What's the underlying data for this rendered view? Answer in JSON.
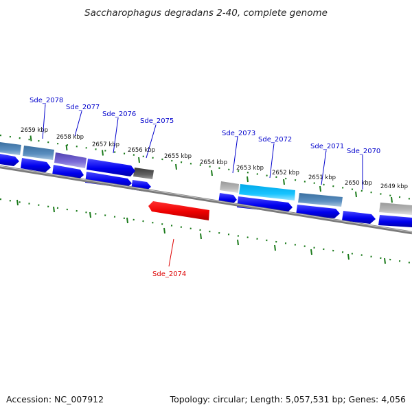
{
  "title": "Saccharophagus degradans 2-40, complete genome",
  "footer": {
    "accession": "Accession: NC_007912",
    "summary": "Topology: circular; Length: 5,057,531 bp; Genes: 4,056"
  },
  "colors": {
    "backbone": "#808080",
    "tick": "#1a7a1a",
    "label_forward": "#0000cc",
    "label_reverse": "#dd0000",
    "cds_forward": "#0000ee",
    "cds_reverse": "#ee0000"
  },
  "tick_labels": [
    {
      "id": "t2659",
      "text": "2659 kbp"
    },
    {
      "id": "t2658",
      "text": "2658 kbp"
    },
    {
      "id": "t2657",
      "text": "2657 kbp"
    },
    {
      "id": "t2656",
      "text": "2656 kbp"
    },
    {
      "id": "t2655",
      "text": "2655 kbp"
    },
    {
      "id": "t2654",
      "text": "2654 kbp"
    },
    {
      "id": "t2653",
      "text": "2653 kbp"
    },
    {
      "id": "t2652",
      "text": "2652 kbp"
    },
    {
      "id": "t2651",
      "text": "2651 kbp"
    },
    {
      "id": "t2650",
      "text": "2650 kbp"
    },
    {
      "id": "t2649",
      "text": "2649 kbp"
    }
  ],
  "genes": [
    {
      "id": "g2078",
      "label": "Sde_2078",
      "strand": "forward"
    },
    {
      "id": "g2077",
      "label": "Sde_2077",
      "strand": "forward"
    },
    {
      "id": "g2076",
      "label": "Sde_2076",
      "strand": "forward"
    },
    {
      "id": "g2075",
      "label": "Sde_2075",
      "strand": "forward"
    },
    {
      "id": "g2074",
      "label": "Sde_2074",
      "strand": "reverse"
    },
    {
      "id": "g2073",
      "label": "Sde_2073",
      "strand": "forward"
    },
    {
      "id": "g2072",
      "label": "Sde_2072",
      "strand": "forward"
    },
    {
      "id": "g2071",
      "label": "Sde_2071",
      "strand": "forward"
    },
    {
      "id": "g2070",
      "label": "Sde_2070",
      "strand": "forward"
    }
  ]
}
